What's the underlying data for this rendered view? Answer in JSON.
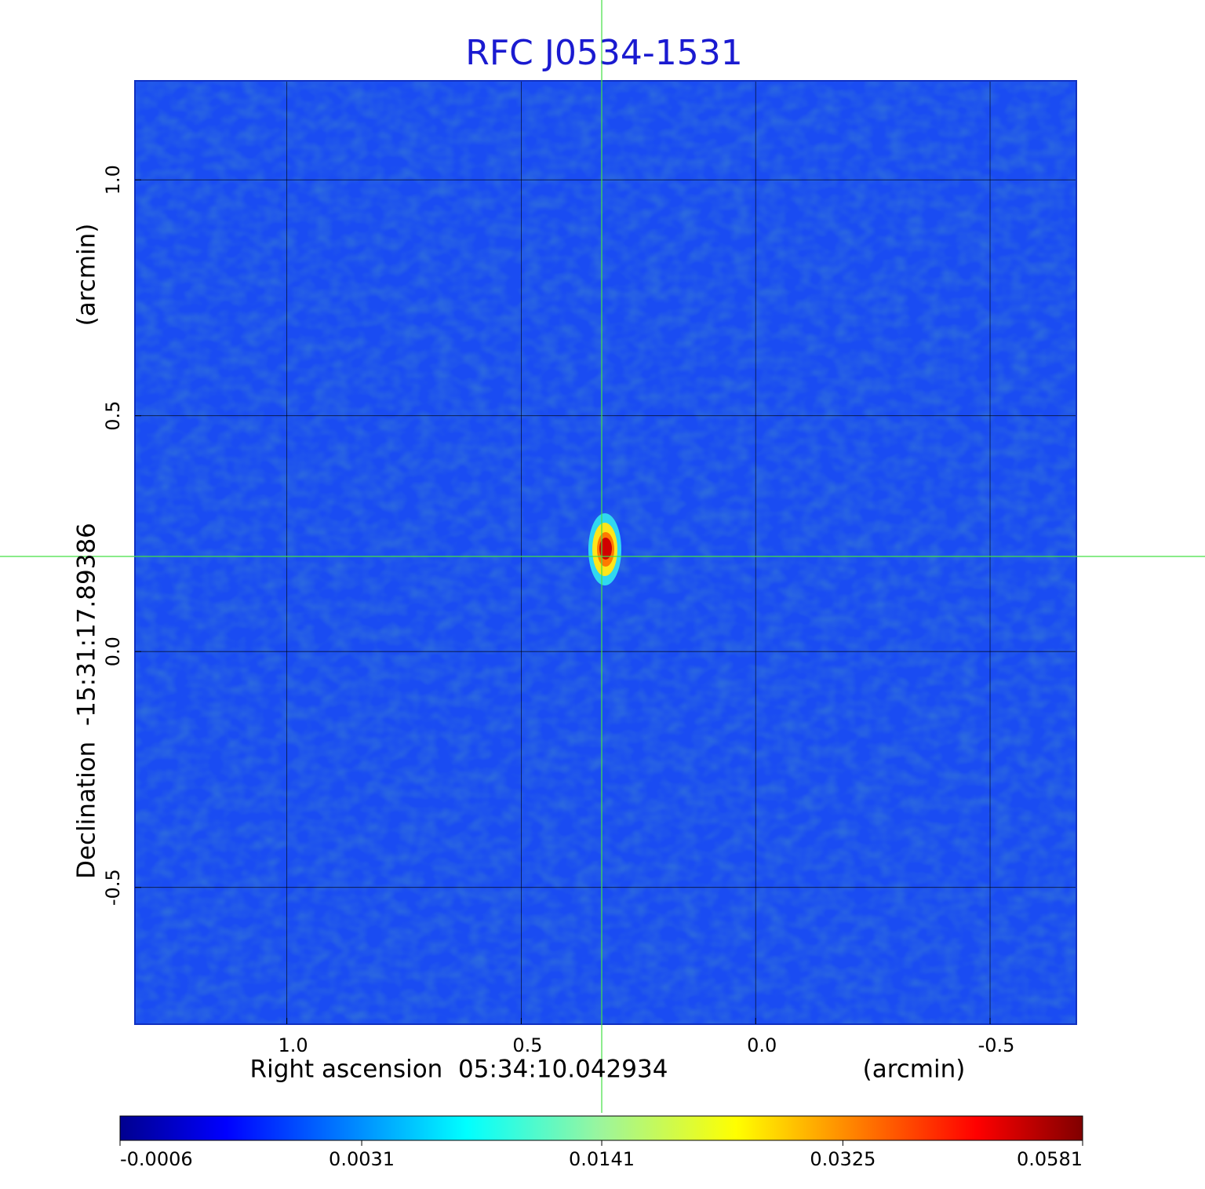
{
  "chart_data": {
    "type": "image",
    "title": "RFC J0534-1531",
    "title_color": "#1a1ad0",
    "xlabel": "Right ascension  05:34:10.042934",
    "xlabel_unit": "(arcmin)",
    "ylabel": "Declination  -15:31:17.89386",
    "ylabel_unit": "(arcmin)",
    "xlim": [
      1.324,
      -0.684
    ],
    "ylim": [
      -0.79,
      1.21
    ],
    "xticks": [
      {
        "value": 1,
        "label": "1.0"
      },
      {
        "value": 0.5,
        "label": "0.5"
      },
      {
        "value": 0,
        "label": "0.0"
      },
      {
        "value": -0.5,
        "label": "-0.5"
      }
    ],
    "yticks": [
      {
        "value": -0.5,
        "label": "-0.5"
      },
      {
        "value": 0,
        "label": "0.0"
      },
      {
        "value": 0.5,
        "label": "0.5"
      },
      {
        "value": 1,
        "label": "1.0"
      }
    ],
    "grid": true,
    "colorbar": {
      "colormap": "jet",
      "scale": "sqrt",
      "lim": [
        -0.0006,
        0.0581
      ],
      "ticks": [
        -0.0006,
        0.0031,
        0.0141,
        0.0325,
        0.0581
      ]
    }
  }
}
